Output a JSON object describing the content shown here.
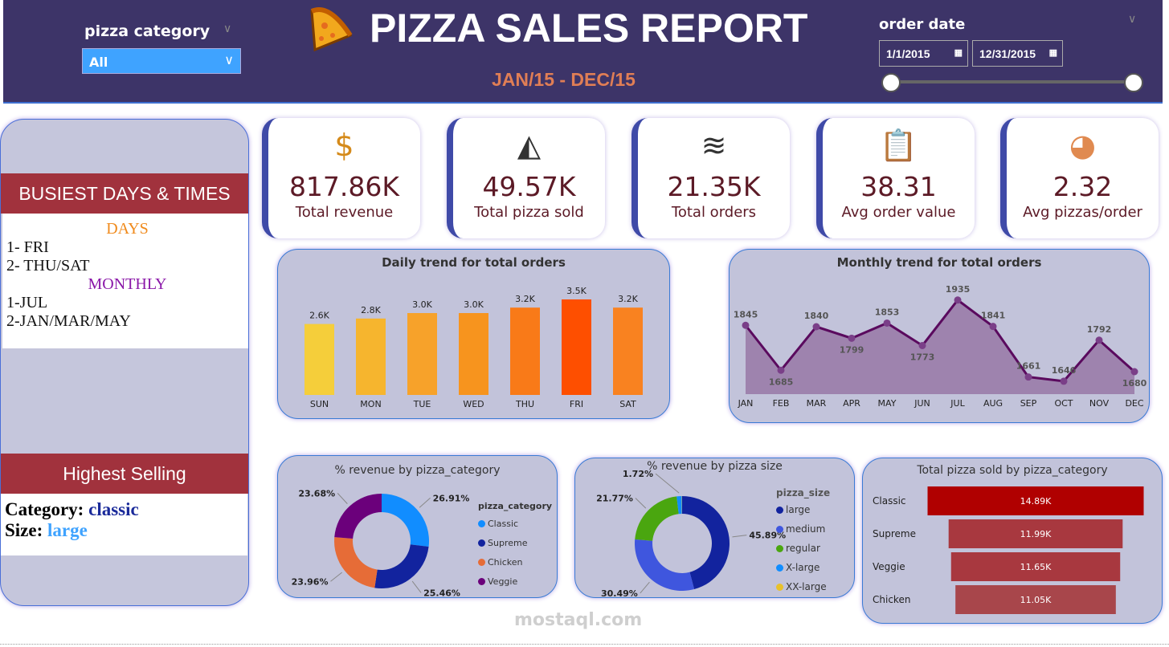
{
  "header": {
    "title": "PIZZA SALES REPORT",
    "subtitle": "JAN/15 - DEC/15",
    "pizza_category_label": "pizza category",
    "pizza_category_value": "All",
    "order_date_label": "order date",
    "date_start": "1/1/2015",
    "date_end": "12/31/2015",
    "header_bg": "#3d3468"
  },
  "left": {
    "busiest_title": "BUSIEST DAYS & TIMES",
    "days_heading": "DAYS",
    "days": [
      "1- FRI",
      "2- THU/SAT"
    ],
    "monthly_heading": "MONTHLY",
    "months": [
      "1-JUL",
      "2-JAN/MAR/MAY"
    ],
    "highest_title": "Highest Selling",
    "category_label": "Category:",
    "category_value": "classic",
    "size_label": "Size:",
    "size_value": "large"
  },
  "kpis": [
    {
      "icon": "dollar-icon",
      "value": "817.86K",
      "label": "Total revenue"
    },
    {
      "icon": "pizza-slice-icon",
      "value": "49.57K",
      "label": "Total pizza sold"
    },
    {
      "icon": "layers-icon",
      "value": "21.35K",
      "label": "Total orders"
    },
    {
      "icon": "clipboard-icon",
      "value": "38.31",
      "label": "Avg order value"
    },
    {
      "icon": "pizza-icon",
      "value": "2.32",
      "label": "Avg pizzas/order"
    }
  ],
  "chart_data": [
    {
      "type": "bar",
      "title": "Daily trend for total orders",
      "categories": [
        "SUN",
        "MON",
        "TUE",
        "WED",
        "THU",
        "FRI",
        "SAT"
      ],
      "values": [
        2600,
        2800,
        3000,
        3000,
        3200,
        3500,
        3200
      ],
      "labels": [
        "2.6K",
        "2.8K",
        "3.0K",
        "3.0K",
        "3.2K",
        "3.5K",
        "3.2K"
      ],
      "colors": [
        "#f5ce3a",
        "#f6b52e",
        "#f7a22a",
        "#f7941e",
        "#f97a18",
        "#fe4f00",
        "#f98220"
      ],
      "ylim": [
        0,
        3500
      ]
    },
    {
      "type": "area",
      "title": "Monthly trend for total orders",
      "categories": [
        "JAN",
        "FEB",
        "MAR",
        "APR",
        "MAY",
        "JUN",
        "JUL",
        "AUG",
        "SEP",
        "OCT",
        "NOV",
        "DEC"
      ],
      "values": [
        1845,
        1685,
        1840,
        1799,
        1853,
        1773,
        1935,
        1841,
        1661,
        1646,
        1792,
        1680
      ],
      "ylim": [
        1600,
        2000
      ],
      "line_color": "#5a0a5e",
      "fill_color": "#9e83ae"
    },
    {
      "type": "pie",
      "title": "% revenue by pizza_category",
      "legend_title": "pizza_category",
      "categories": [
        "Classic",
        "Supreme",
        "Chicken",
        "Veggie"
      ],
      "values": [
        26.91,
        25.46,
        23.96,
        23.68
      ],
      "labels": [
        "26.91%",
        "25.46%",
        "23.96%",
        "23.68%"
      ],
      "colors": [
        "#118dff",
        "#12239e",
        "#e66c37",
        "#6b007b"
      ]
    },
    {
      "type": "pie",
      "title": "% revenue by pizza size",
      "legend_title": "pizza_size",
      "categories": [
        "large",
        "medium",
        "regular",
        "X-large",
        "XX-large"
      ],
      "values": [
        45.89,
        30.49,
        21.77,
        1.72,
        0.12
      ],
      "labels": [
        "45.89%",
        "30.49%",
        "21.77%",
        "1.72%",
        ""
      ],
      "colors": [
        "#12239e",
        "#3f56de",
        "#4aa60f",
        "#118dff",
        "#e8c12a"
      ]
    },
    {
      "type": "bar",
      "orientation": "horizontal",
      "title": "Total pizza sold by pizza_category",
      "categories": [
        "Classic",
        "Supreme",
        "Veggie",
        "Chicken"
      ],
      "values": [
        14890,
        11990,
        11650,
        11050
      ],
      "labels": [
        "14.89K",
        "11.99K",
        "11.65K",
        "11.05K"
      ],
      "colors": [
        "#b00000",
        "#a8383f",
        "#a8383f",
        "#a8464b"
      ]
    }
  ],
  "watermark": "mostaql.com"
}
